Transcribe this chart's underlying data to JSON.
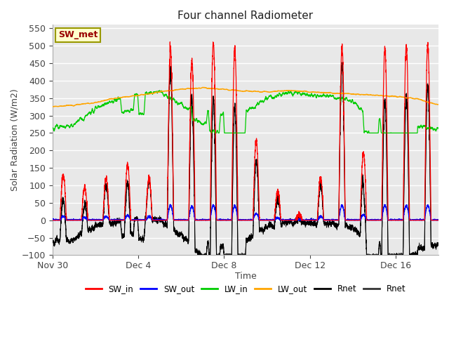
{
  "title": "Four channel Radiometer",
  "xlabel": "Time",
  "ylabel": "Solar Radiation (W/m2)",
  "ylim": [
    -100,
    560
  ],
  "yticks": [
    -100,
    -50,
    0,
    50,
    100,
    150,
    200,
    250,
    300,
    350,
    400,
    450,
    500,
    550
  ],
  "xtick_labels": [
    "Nov 30",
    "Dec 4",
    "Dec 8",
    "Dec 12",
    "Dec 16"
  ],
  "xtick_positions": [
    0,
    4,
    8,
    12,
    16
  ],
  "annotation": "SW_met",
  "bg_color": "#e8e8e8",
  "grid_color": "white",
  "colors": {
    "SW_in": "#ff0000",
    "SW_out": "#0000ff",
    "LW_in": "#00cc00",
    "LW_out": "#ffa500",
    "Rnet_black": "#000000",
    "Rnet_dark": "#333333"
  },
  "legend_labels": [
    "SW_in",
    "SW_out",
    "LW_in",
    "LW_out",
    "Rnet",
    "Rnet"
  ],
  "figsize": [
    6.4,
    4.8
  ],
  "dpi": 100
}
